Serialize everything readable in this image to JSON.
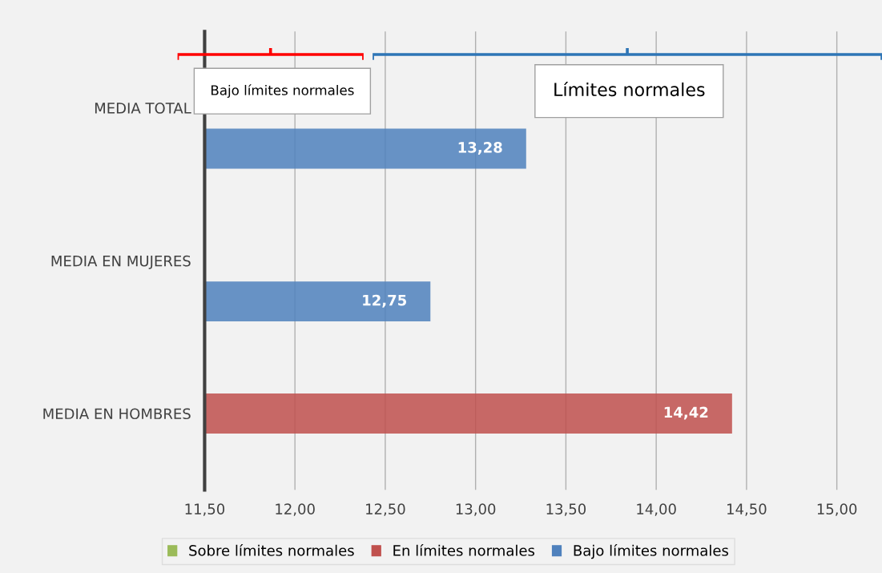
{
  "chart_data": {
    "type": "bar",
    "orientation": "horizontal",
    "categories": [
      "MEDIA TOTAL",
      "MEDIA EN MUJERES",
      "MEDIA EN HOMBRES"
    ],
    "series": [
      {
        "name": "Sobre límites normales",
        "color": "#9bbb59",
        "values": [
          null,
          null,
          null
        ],
        "value_labels": [
          null,
          null,
          null
        ]
      },
      {
        "name": "En límites normales",
        "color": "#c0504d",
        "values": [
          null,
          null,
          14.42
        ],
        "value_labels": [
          null,
          null,
          "14,42"
        ]
      },
      {
        "name": "Bajo límites normales",
        "color": "#4f81bd",
        "values": [
          13.28,
          12.75,
          null
        ],
        "value_labels": [
          "13,28",
          "12,75",
          null
        ]
      }
    ],
    "xlim": [
      11.5,
      15.25
    ],
    "xticks": [
      {
        "value": 11.5,
        "label": "11,50"
      },
      {
        "value": 12.0,
        "label": "12,00"
      },
      {
        "value": 12.5,
        "label": "12,50"
      },
      {
        "value": 13.0,
        "label": "13,00"
      },
      {
        "value": 13.5,
        "label": "13,50"
      },
      {
        "value": 14.0,
        "label": "14,00"
      },
      {
        "value": 14.5,
        "label": "14,50"
      },
      {
        "value": 15.0,
        "label": "15,00"
      }
    ],
    "grid": "x",
    "legend": "bottom",
    "annotations": [
      "Bajo límites normales",
      "Límites normales"
    ]
  }
}
